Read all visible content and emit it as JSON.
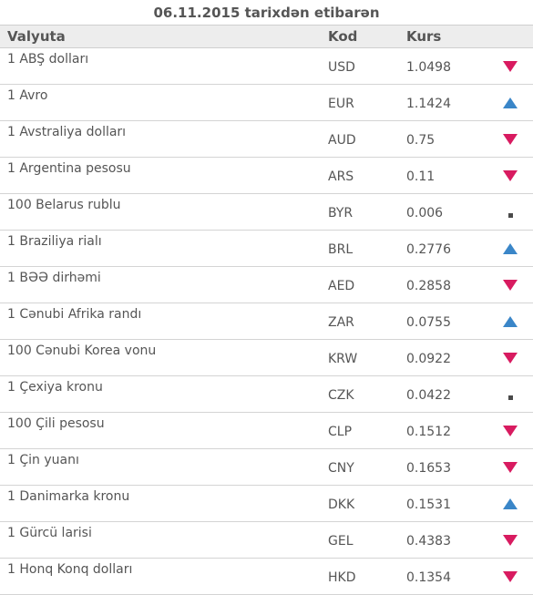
{
  "caption": "06.11.2015 tarixdən etibarən",
  "headers": {
    "currency": "Valyuta",
    "code": "Kod",
    "rate": "Kurs",
    "trend": ""
  },
  "colors": {
    "down": "#d81b60",
    "up": "#3a86c8",
    "unchanged": "#4a4a4a"
  },
  "rows": [
    {
      "name": "1 ABŞ dolları",
      "code": "USD",
      "rate": "1.0498",
      "trend": "down"
    },
    {
      "name": "1 Avro",
      "code": "EUR",
      "rate": "1.1424",
      "trend": "up"
    },
    {
      "name": "1 Avstraliya dolları",
      "code": "AUD",
      "rate": "0.75",
      "trend": "down"
    },
    {
      "name": "1 Argentina pesosu",
      "code": "ARS",
      "rate": "0.11",
      "trend": "down"
    },
    {
      "name": "100 Belarus rublu",
      "code": "BYR",
      "rate": "0.006",
      "trend": "unchanged"
    },
    {
      "name": "1 Braziliya rialı",
      "code": "BRL",
      "rate": "0.2776",
      "trend": "up"
    },
    {
      "name": "1 BƏƏ dirhəmi",
      "code": "AED",
      "rate": "0.2858",
      "trend": "down"
    },
    {
      "name": "1 Cənubi Afrika randı",
      "code": "ZAR",
      "rate": "0.0755",
      "trend": "up"
    },
    {
      "name": "100 Cənubi Korea vonu",
      "code": "KRW",
      "rate": "0.0922",
      "trend": "down"
    },
    {
      "name": "1 Çexiya kronu",
      "code": "CZK",
      "rate": "0.0422",
      "trend": "unchanged"
    },
    {
      "name": "100 Çili pesosu",
      "code": "CLP",
      "rate": "0.1512",
      "trend": "down"
    },
    {
      "name": "1 Çin yuanı",
      "code": "CNY",
      "rate": "0.1653",
      "trend": "down"
    },
    {
      "name": "1 Danimarka kronu",
      "code": "DKK",
      "rate": "0.1531",
      "trend": "up"
    },
    {
      "name": "1 Gürcü larisi",
      "code": "GEL",
      "rate": "0.4383",
      "trend": "down"
    },
    {
      "name": "1 Honq Konq dolları",
      "code": "HKD",
      "rate": "0.1354",
      "trend": "down"
    }
  ]
}
